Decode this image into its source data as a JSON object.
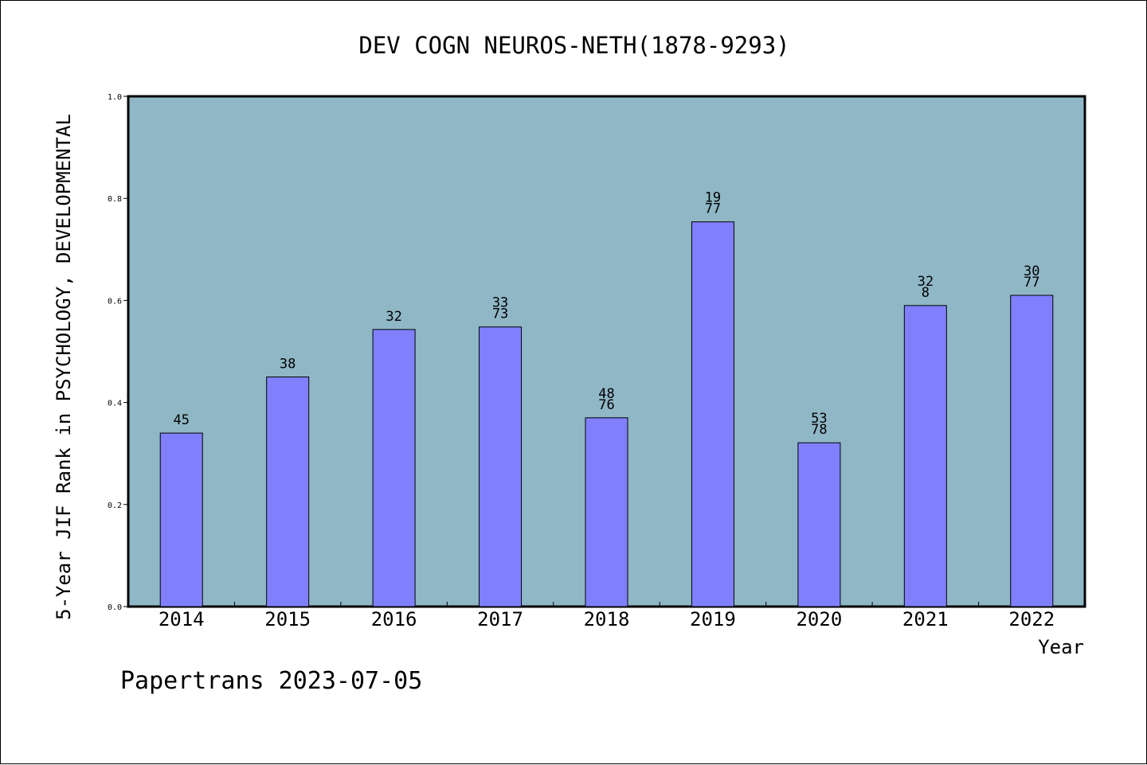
{
  "chart_data": {
    "type": "bar",
    "title": "DEV COGN NEUROS-NETH(1878-9293)",
    "ylabel": "5-Year JIF Rank in PSYCHOLOGY, DEVELOPMENTAL",
    "xlabel": "Year",
    "footer": "Papertrans 2023-07-05",
    "categories": [
      "2014",
      "2015",
      "2016",
      "2017",
      "2018",
      "2019",
      "2020",
      "2021",
      "2022"
    ],
    "values": [
      0.34,
      0.45,
      0.543,
      0.548,
      0.37,
      0.754,
      0.321,
      0.59,
      0.61
    ],
    "bar_labels": [
      [
        "45"
      ],
      [
        "38"
      ],
      [
        "32"
      ],
      [
        "33",
        "73"
      ],
      [
        "48",
        "76"
      ],
      [
        "19",
        "77"
      ],
      [
        "53",
        "78"
      ],
      [
        "32",
        "8"
      ],
      [
        "30",
        "77"
      ]
    ],
    "yticks": [
      "0.0",
      "0.2",
      "0.4",
      "0.6",
      "0.8",
      "1.0"
    ],
    "ylim": [
      0,
      1.0
    ],
    "grid": false,
    "colors": {
      "plot_background": "#8fb7c6",
      "bar_fill": "#8080ff",
      "bar_stroke": "#000000",
      "axis": "#000000",
      "text": "#000000"
    }
  }
}
